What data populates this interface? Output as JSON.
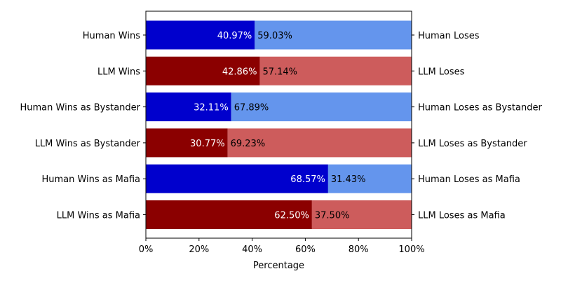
{
  "chart_data": {
    "type": "bar",
    "orientation": "horizontal",
    "stacked": true,
    "title": "",
    "xlabel": "Percentage",
    "ylabel": "",
    "xlim": [
      0,
      100
    ],
    "x_tick_labels": [
      "0%",
      "20%",
      "40%",
      "60%",
      "80%",
      "100%"
    ],
    "x_ticks": [
      0,
      20,
      40,
      60,
      80,
      100
    ],
    "grid": false,
    "legend": "none",
    "colors": {
      "human_win": "#0000cd",
      "human_lose": "#6495ed",
      "llm_win": "#8b0000",
      "llm_lose": "#cd5c5c",
      "win_label_text": "#ffffff",
      "lose_label_text": "#000000"
    },
    "rows": [
      {
        "left_label": "Human Wins",
        "right_label": "Human Loses",
        "win": 40.97,
        "lose": 59.03,
        "win_text": "40.97%",
        "lose_text": "59.03%",
        "group": "human"
      },
      {
        "left_label": "LLM Wins",
        "right_label": "LLM Loses",
        "win": 42.86,
        "lose": 57.14,
        "win_text": "42.86%",
        "lose_text": "57.14%",
        "group": "llm"
      },
      {
        "left_label": "Human Wins as Bystander",
        "right_label": "Human Loses as Bystander",
        "win": 32.11,
        "lose": 67.89,
        "win_text": "32.11%",
        "lose_text": "67.89%",
        "group": "human"
      },
      {
        "left_label": "LLM Wins as Bystander",
        "right_label": "LLM Loses as Bystander",
        "win": 30.77,
        "lose": 69.23,
        "win_text": "30.77%",
        "lose_text": "69.23%",
        "group": "llm"
      },
      {
        "left_label": "Human Wins as Mafia",
        "right_label": "Human Loses as Mafia",
        "win": 68.57,
        "lose": 31.43,
        "win_text": "68.57%",
        "lose_text": "31.43%",
        "group": "human"
      },
      {
        "left_label": "LLM Wins as Mafia",
        "right_label": "LLM Loses as Mafia",
        "win": 62.5,
        "lose": 37.5,
        "win_text": "62.50%",
        "lose_text": "37.50%",
        "group": "llm"
      }
    ]
  }
}
